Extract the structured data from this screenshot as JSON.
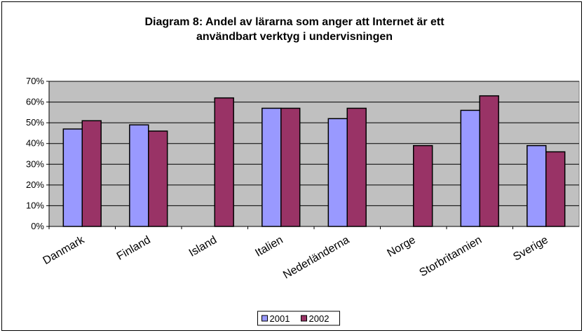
{
  "chart_data": {
    "type": "bar",
    "title": [
      "Diagram 8: Andel av lärarna som anger att Internet är ett",
      "användbart verktyg i undervisningen"
    ],
    "categories": [
      "Danmark",
      "Finland",
      "Island",
      "Italien",
      "Nederländerna",
      "Norge",
      "Storbritannien",
      "Sverige"
    ],
    "series": [
      {
        "name": "2001",
        "color": "#9999ff",
        "values": [
          47,
          49,
          null,
          57,
          52,
          null,
          56,
          39
        ]
      },
      {
        "name": "2002",
        "color": "#993366",
        "values": [
          51,
          46,
          62,
          57,
          57,
          39,
          63,
          36
        ]
      }
    ],
    "ylim": [
      0,
      70
    ],
    "yticks": [
      {
        "value": 0,
        "label": "0%"
      },
      {
        "value": 10,
        "label": "10%"
      },
      {
        "value": 20,
        "label": "20%"
      },
      {
        "value": 30,
        "label": "30%"
      },
      {
        "value": 40,
        "label": "40%"
      },
      {
        "value": 50,
        "label": "50%"
      },
      {
        "value": 60,
        "label": "60%"
      },
      {
        "value": 70,
        "label": "70%"
      }
    ],
    "grid": true,
    "legend": "bottom"
  }
}
